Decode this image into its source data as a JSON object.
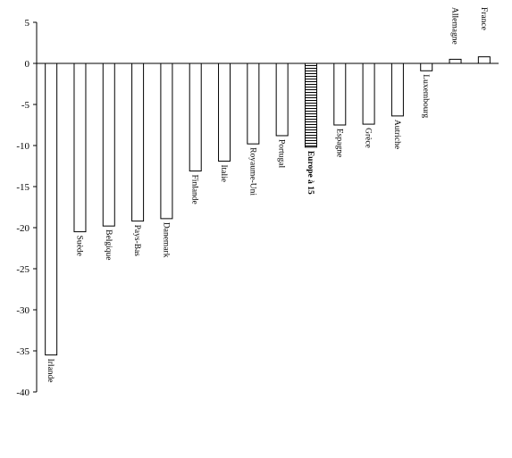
{
  "chart_data": {
    "type": "bar",
    "title": "",
    "xlabel": "",
    "ylabel": "",
    "ylim": [
      -40,
      5
    ],
    "yticks": [
      5,
      0,
      -5,
      -10,
      -15,
      -20,
      -25,
      -30,
      -35,
      -40
    ],
    "grid": false,
    "categories": [
      "Irlande",
      "Suède",
      "Belgique",
      "Pays-Bas",
      "Danemark",
      "Finlande",
      "Italie",
      "Royaume-Uni",
      "Portugal",
      "Europe à 15",
      "Espagne",
      "Grèce",
      "Autriche",
      "Luxembourg",
      "Allemagne",
      "France"
    ],
    "values": [
      -35.5,
      -20.5,
      -19.8,
      -19.2,
      -18.9,
      -13.1,
      -11.9,
      -9.8,
      -8.8,
      -10.2,
      -7.5,
      -7.4,
      -6.4,
      -0.9,
      0.5,
      0.8
    ],
    "highlight_category": "Europe à 15",
    "colors": {
      "bar_fill": "#ffffff",
      "bar_stroke": "#000000",
      "axis": "#000000"
    }
  }
}
